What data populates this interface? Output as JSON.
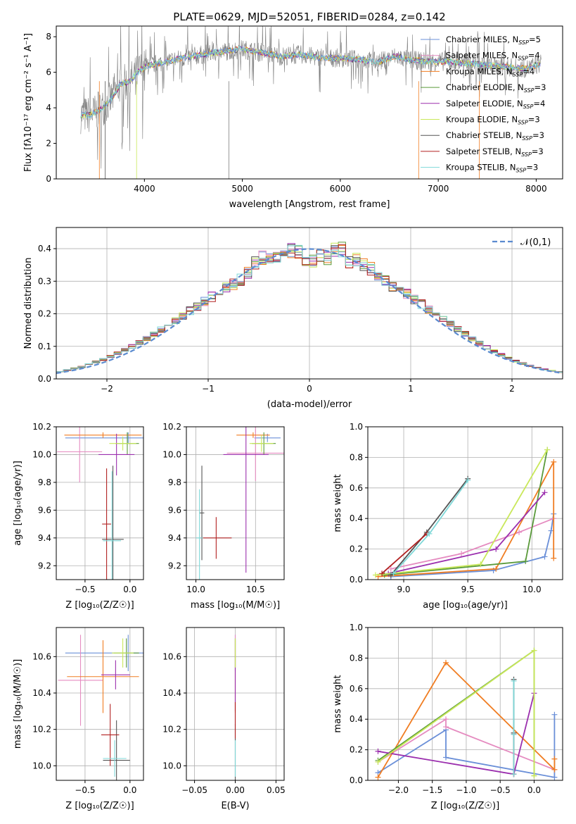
{
  "title": "PLATE=0629, MJD=52051, FIBERID=0284, z=0.142",
  "colors": {
    "chabrier_miles": "#6a8fd8",
    "salpeter_miles": "#e58bc0",
    "kroupa_miles": "#f07d22",
    "chabrier_elodie": "#5a9a3a",
    "salpeter_elodie": "#9b2fae",
    "kroupa_elodie": "#c9e85a",
    "chabrier_stelib": "#555555",
    "salpeter_stelib": "#b22222",
    "kroupa_stelib": "#7fd8d8",
    "normal": "#5b8bd0",
    "grid": "#b0b0b0"
  },
  "legend": [
    {
      "key": "chabrier_miles",
      "text": "Chabrier MILES, N",
      "sub": "SSP",
      "n": "=5"
    },
    {
      "key": "salpeter_miles",
      "text": "Salpeter MILES, N",
      "sub": "SSP",
      "n": "=4"
    },
    {
      "key": "kroupa_miles",
      "text": "Kroupa MILES, N",
      "sub": "SSP",
      "n": "=4"
    },
    {
      "key": "chabrier_elodie",
      "text": "Chabrier ELODIE, N",
      "sub": "SSP",
      "n": "=3"
    },
    {
      "key": "salpeter_elodie",
      "text": "Salpeter ELODIE, N",
      "sub": "SSP",
      "n": "=4"
    },
    {
      "key": "kroupa_elodie",
      "text": "Kroupa ELODIE, N",
      "sub": "SSP",
      "n": "=3"
    },
    {
      "key": "chabrier_stelib",
      "text": "Chabrier STELIB, N",
      "sub": "SSP",
      "n": "=3"
    },
    {
      "key": "salpeter_stelib",
      "text": "Salpeter STELIB, N",
      "sub": "SSP",
      "n": "=3"
    },
    {
      "key": "kroupa_stelib",
      "text": "Kroupa STELIB, N",
      "sub": "SSP",
      "n": "=3"
    }
  ],
  "chart_data": [
    {
      "id": "spectrum",
      "type": "line",
      "xlabel": "wavelength [Angstrom, rest frame]",
      "ylabel": "Flux [fλ10⁻¹⁷ erg cm⁻² s⁻¹ A⁻¹]",
      "xlim": [
        3100,
        8270
      ],
      "ylim": [
        0,
        8.6
      ],
      "xticks": [
        4000,
        5000,
        6000,
        7000,
        8000
      ],
      "yticks": [
        0,
        2,
        4,
        6,
        8
      ],
      "grid": false,
      "legend_position": "top-right",
      "data_curve": {
        "wavelength": [
          3350,
          3450,
          3550,
          3650,
          3750,
          3850,
          3950,
          4050,
          4150,
          4300,
          4500,
          4700,
          4862,
          5000,
          5200,
          5400,
          5600,
          5800,
          6000,
          6200,
          6400,
          6563,
          6700,
          6900,
          7100,
          7300,
          7500,
          7700,
          7900,
          8050
        ],
        "flux": [
          3.6,
          3.6,
          3.9,
          4.4,
          5.3,
          5.5,
          6.1,
          6.4,
          6.5,
          6.7,
          6.9,
          7.1,
          7.2,
          7.3,
          7.1,
          6.9,
          7.0,
          6.8,
          6.8,
          6.7,
          6.6,
          6.9,
          6.7,
          6.6,
          6.6,
          6.5,
          6.4,
          6.3,
          6.2,
          6.5
        ]
      }
    },
    {
      "id": "residuals",
      "type": "bar",
      "xlabel": "(data-model)/error",
      "ylabel": "Normed distribution",
      "xlim": [
        -2.5,
        2.5
      ],
      "ylim": [
        0,
        0.465
      ],
      "xticks": [
        -2,
        -1,
        0,
        1,
        2
      ],
      "yticks": [
        0.0,
        0.1,
        0.2,
        0.3,
        0.4
      ],
      "grid": true,
      "bin_width": 0.1,
      "bins_start": -2.5,
      "histogram": [
        0.024,
        0.027,
        0.032,
        0.037,
        0.044,
        0.052,
        0.06,
        0.069,
        0.079,
        0.089,
        0.1,
        0.112,
        0.125,
        0.138,
        0.152,
        0.166,
        0.18,
        0.194,
        0.209,
        0.223,
        0.238,
        0.252,
        0.266,
        0.28,
        0.292,
        0.304,
        0.324,
        0.355,
        0.372,
        0.374,
        0.38,
        0.387,
        0.393,
        0.39,
        0.355,
        0.362,
        0.378,
        0.372,
        0.395,
        0.398,
        0.36,
        0.365,
        0.349,
        0.339,
        0.315,
        0.3,
        0.286,
        0.273,
        0.26,
        0.244,
        0.23,
        0.213,
        0.198,
        0.183,
        0.168,
        0.152,
        0.138,
        0.123,
        0.11,
        0.097,
        0.085,
        0.074,
        0.064,
        0.055,
        0.047,
        0.04,
        0.034,
        0.029,
        0.025,
        0.021
      ],
      "curve_name": "𝒩(0,1)",
      "legend_position": "top-right"
    },
    {
      "id": "age_vs_Z",
      "type": "scatter",
      "xlabel": "Z [log₁₀(Z/Z☉)]",
      "ylabel": "age  [log₁₀(age/yr)]",
      "xlim": [
        -0.82,
        0.15
      ],
      "ylim": [
        9.1,
        10.2
      ],
      "xticks": [
        -0.5,
        0.0
      ],
      "yticks": [
        9.2,
        9.4,
        9.6,
        9.8,
        10.0,
        10.2
      ],
      "grid": true,
      "errorbars": [
        {
          "key": "chabrier_miles",
          "x": -0.02,
          "xerr": 0.7,
          "y": 10.12,
          "yerr": 0.04
        },
        {
          "key": "salpeter_miles",
          "x": -0.56,
          "xerr": 0.25,
          "y": 10.02,
          "yerr": 0.22
        },
        {
          "key": "kroupa_miles",
          "x": -0.3,
          "xerr": 0.43,
          "y": 10.14,
          "yerr": 0.02
        },
        {
          "key": "chabrier_elodie",
          "x": -0.03,
          "xerr": 0.13,
          "y": 10.08,
          "yerr": 0.08
        },
        {
          "key": "salpeter_elodie",
          "x": -0.15,
          "xerr": 0.2,
          "y": 10.0,
          "yerr": 0.15
        },
        {
          "key": "kroupa_elodie",
          "x": -0.08,
          "xerr": 0.15,
          "y": 10.08,
          "yerr": 0.05
        },
        {
          "key": "chabrier_stelib",
          "x": -0.19,
          "xerr": 0.12,
          "y": 9.39,
          "yerr": 0.53
        },
        {
          "key": "salpeter_stelib",
          "x": -0.26,
          "xerr": 0.05,
          "y": 9.5,
          "yerr": 0.4
        },
        {
          "key": "kroupa_stelib",
          "x": -0.2,
          "xerr": 0.1,
          "y": 9.38,
          "yerr": 0.5
        }
      ]
    },
    {
      "id": "age_vs_mass",
      "type": "scatter",
      "xlabel": "mass [log₁₀(M/M☉)]",
      "ylabel": "",
      "xlim": [
        9.92,
        10.74
      ],
      "ylim": [
        9.1,
        10.2
      ],
      "xticks": [
        10.0,
        10.5
      ],
      "yticks": [
        9.2,
        9.4,
        9.6,
        9.8,
        10.0,
        10.2
      ],
      "grid": true,
      "errorbars": [
        {
          "key": "chabrier_miles",
          "x": 10.6,
          "xerr": 0.11,
          "y": 10.12,
          "yerr": 0.03
        },
        {
          "key": "salpeter_miles",
          "x": 10.5,
          "xerr": 0.24,
          "y": 10.01,
          "yerr": 0.2
        },
        {
          "key": "kroupa_miles",
          "x": 10.48,
          "xerr": 0.14,
          "y": 10.14,
          "yerr": 0.02
        },
        {
          "key": "chabrier_elodie",
          "x": 10.57,
          "xerr": 0.1,
          "y": 10.08,
          "yerr": 0.08
        },
        {
          "key": "salpeter_elodie",
          "x": 10.42,
          "xerr": 0.19,
          "y": 10.0,
          "yerr": 0.85
        },
        {
          "key": "kroupa_elodie",
          "x": 10.55,
          "xerr": 0.1,
          "y": 10.08,
          "yerr": 0.06
        },
        {
          "key": "chabrier_stelib",
          "x": 10.05,
          "xerr": 0.02,
          "y": 9.58,
          "yerr": 0.34
        },
        {
          "key": "salpeter_stelib",
          "x": 10.17,
          "xerr": 0.13,
          "y": 9.4,
          "yerr": 0.15
        },
        {
          "key": "kroupa_stelib",
          "x": 10.03,
          "xerr": 0.03,
          "y": 9.4,
          "yerr": 0.35
        }
      ]
    },
    {
      "id": "weight_vs_age",
      "type": "line",
      "xlabel": "age  [log₁₀(age/yr)]",
      "ylabel": "mass weight",
      "xlim": [
        8.72,
        10.24
      ],
      "ylim": [
        0,
        1.0
      ],
      "xticks": [
        9.0,
        9.5,
        10.0
      ],
      "yticks": [
        0.0,
        0.2,
        0.4,
        0.6,
        0.8,
        1.0
      ],
      "grid": true,
      "series": [
        {
          "key": "chabrier_miles",
          "x": [
            8.9,
            9.7,
            10.1,
            10.15,
            10.17
          ],
          "y": [
            0.02,
            0.06,
            0.15,
            0.32,
            0.43
          ]
        },
        {
          "key": "salpeter_miles",
          "x": [
            8.9,
            9.45,
            9.9,
            10.17
          ],
          "y": [
            0.07,
            0.17,
            0.31,
            0.4
          ]
        },
        {
          "key": "kroupa_miles",
          "x": [
            8.8,
            9.72,
            10.17,
            10.17
          ],
          "y": [
            0.02,
            0.07,
            0.77,
            0.14
          ]
        },
        {
          "key": "chabrier_elodie",
          "x": [
            8.85,
            9.95,
            10.12
          ],
          "y": [
            0.03,
            0.12,
            0.85
          ]
        },
        {
          "key": "salpeter_elodie",
          "x": [
            8.88,
            9.72,
            10.1
          ],
          "y": [
            0.04,
            0.2,
            0.57
          ]
        },
        {
          "key": "kroupa_elodie",
          "x": [
            8.78,
            9.6,
            10.12
          ],
          "y": [
            0.03,
            0.1,
            0.85
          ]
        },
        {
          "key": "chabrier_stelib",
          "x": [
            8.9,
            9.18,
            9.5
          ],
          "y": [
            0.03,
            0.31,
            0.66
          ]
        },
        {
          "key": "salpeter_stelib",
          "x": [
            8.83,
            9.18
          ],
          "y": [
            0.04,
            0.3
          ]
        },
        {
          "key": "kroupa_stelib",
          "x": [
            8.92,
            9.2,
            9.5
          ],
          "y": [
            0.04,
            0.3,
            0.65
          ]
        }
      ]
    },
    {
      "id": "mass_vs_Z",
      "type": "scatter",
      "xlabel": "Z [log₁₀(Z/Z☉)]",
      "ylabel": "mass [log₁₀(M/M☉)]",
      "xlim": [
        -0.82,
        0.15
      ],
      "ylim": [
        9.92,
        10.76
      ],
      "xticks": [
        -0.5,
        0.0
      ],
      "yticks": [
        10.0,
        10.2,
        10.4,
        10.6
      ],
      "grid": true,
      "errorbars": [
        {
          "key": "chabrier_miles",
          "x": -0.02,
          "xerr": 0.7,
          "y": 10.62,
          "yerr": 0.1
        },
        {
          "key": "salpeter_miles",
          "x": -0.55,
          "xerr": 0.25,
          "y": 10.47,
          "yerr": 0.25
        },
        {
          "key": "kroupa_miles",
          "x": -0.3,
          "xerr": 0.4,
          "y": 10.49,
          "yerr": 0.2
        },
        {
          "key": "chabrier_elodie",
          "x": -0.04,
          "xerr": 0.14,
          "y": 10.62,
          "yerr": 0.08
        },
        {
          "key": "salpeter_elodie",
          "x": -0.16,
          "xerr": 0.16,
          "y": 10.5,
          "yerr": 0.08
        },
        {
          "key": "kroupa_elodie",
          "x": -0.08,
          "xerr": 0.12,
          "y": 10.62,
          "yerr": 0.08
        },
        {
          "key": "chabrier_stelib",
          "x": -0.15,
          "xerr": 0.15,
          "y": 10.03,
          "yerr": 0.22
        },
        {
          "key": "salpeter_stelib",
          "x": -0.22,
          "xerr": 0.1,
          "y": 10.17,
          "yerr": 0.17
        },
        {
          "key": "kroupa_stelib",
          "x": -0.17,
          "xerr": 0.13,
          "y": 10.04,
          "yerr": 0.1
        }
      ]
    },
    {
      "id": "mass_vs_ebv",
      "type": "scatter",
      "xlabel": "E(B-V)",
      "ylabel": "",
      "xlim": [
        -0.06,
        0.06
      ],
      "ylim": [
        9.92,
        10.76
      ],
      "xticks": [
        -0.05,
        0.0,
        0.05
      ],
      "yticks": [
        10.0,
        10.2,
        10.4,
        10.6
      ],
      "grid": true,
      "errorbars": [
        {
          "key": "chabrier_miles",
          "x": 0,
          "xerr": 0,
          "y": 10.62,
          "yerr": 0.1
        },
        {
          "key": "salpeter_miles",
          "x": 0,
          "xerr": 0,
          "y": 10.47,
          "yerr": 0.25
        },
        {
          "key": "kroupa_miles",
          "x": 0,
          "xerr": 0,
          "y": 10.49,
          "yerr": 0.2
        },
        {
          "key": "chabrier_elodie",
          "x": 0,
          "xerr": 0,
          "y": 10.62,
          "yerr": 0.08
        },
        {
          "key": "salpeter_elodie",
          "x": 0,
          "xerr": 0,
          "y": 10.5,
          "yerr": 0.2
        },
        {
          "key": "kroupa_elodie",
          "x": 0,
          "xerr": 0,
          "y": 10.62,
          "yerr": 0.08
        },
        {
          "key": "chabrier_stelib",
          "x": 0,
          "xerr": 0,
          "y": 10.03,
          "yerr": 0.2
        },
        {
          "key": "salpeter_stelib",
          "x": 0,
          "xerr": 0,
          "y": 10.25,
          "yerr": 0.1
        },
        {
          "key": "kroupa_stelib",
          "x": 0,
          "xerr": 0,
          "y": 10.04,
          "yerr": 0.1
        }
      ]
    },
    {
      "id": "weight_vs_Z",
      "type": "line",
      "xlabel": "Z [log₁₀(Z/Z☉)]",
      "ylabel": "mass weight",
      "xlim": [
        -2.45,
        0.42
      ],
      "ylim": [
        0,
        1.0
      ],
      "xticks": [
        -2.0,
        -1.5,
        -1.0,
        -0.5,
        0.0
      ],
      "yticks": [
        0.0,
        0.2,
        0.4,
        0.6,
        0.8,
        1.0
      ],
      "grid": true,
      "series": [
        {
          "key": "chabrier_miles",
          "x": [
            -2.3,
            -1.3,
            -1.3,
            0.3,
            0.3
          ],
          "y": [
            0.05,
            0.33,
            0.15,
            0.02,
            0.43
          ]
        },
        {
          "key": "salpeter_miles",
          "x": [
            -2.3,
            -1.3,
            -1.3,
            0.3
          ],
          "y": [
            0.12,
            0.4,
            0.35,
            0.07
          ]
        },
        {
          "key": "kroupa_miles",
          "x": [
            -2.3,
            -1.3,
            0.3,
            0.3
          ],
          "y": [
            0.02,
            0.77,
            0.07,
            0.14
          ]
        },
        {
          "key": "chabrier_elodie",
          "x": [
            -2.3,
            0.0,
            0.0
          ],
          "y": [
            0.13,
            0.85,
            0.03
          ]
        },
        {
          "key": "salpeter_elodie",
          "x": [
            -2.3,
            -0.3,
            0.0
          ],
          "y": [
            0.19,
            0.04,
            0.57
          ]
        },
        {
          "key": "kroupa_elodie",
          "x": [
            -2.3,
            0.0,
            0.0
          ],
          "y": [
            0.12,
            0.85,
            0.03
          ]
        },
        {
          "key": "chabrier_stelib",
          "x": [
            -0.3,
            -0.3,
            -0.3
          ],
          "y": [
            0.04,
            0.31,
            0.66
          ]
        },
        {
          "key": "salpeter_stelib",
          "x": [
            -0.3,
            -0.3
          ],
          "y": [
            0.04,
            0.3
          ]
        },
        {
          "key": "kroupa_stelib",
          "x": [
            -0.3,
            -0.3,
            -0.3
          ],
          "y": [
            0.04,
            0.3,
            0.65
          ]
        }
      ]
    }
  ]
}
